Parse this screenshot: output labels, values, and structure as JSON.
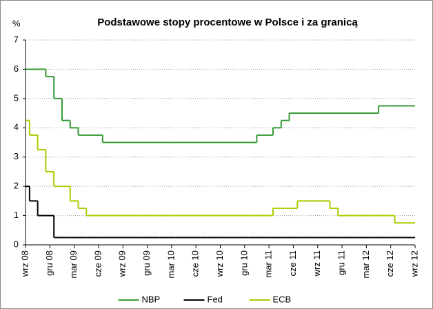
{
  "chart_data": {
    "type": "step",
    "title": "Podstawowe stopy procentowe w Polsce i za granicą",
    "ylabel": "%",
    "categories": [
      "wrz 08",
      null,
      null,
      "gru 08",
      null,
      null,
      "mar 09",
      null,
      null,
      "cze 09",
      null,
      null,
      "wrz 09",
      null,
      null,
      "gru 09",
      null,
      null,
      "mar 10",
      null,
      null,
      "cze 10",
      null,
      null,
      "wrz 10",
      null,
      null,
      "gru 10",
      null,
      null,
      "mar 11",
      null,
      null,
      "cze 11",
      null,
      null,
      "wrz 11",
      null,
      null,
      "gru 11",
      null,
      null,
      "mar 12",
      null,
      null,
      "cze 12",
      null,
      null,
      "wrz 12"
    ],
    "series": [
      {
        "name": "NBP",
        "color": "#339933",
        "values": [
          6,
          6,
          6,
          5.75,
          5,
          4.25,
          4,
          3.75,
          3.75,
          3.75,
          3.5,
          3.5,
          3.5,
          3.5,
          3.5,
          3.5,
          3.5,
          3.5,
          3.5,
          3.5,
          3.5,
          3.5,
          3.5,
          3.5,
          3.5,
          3.5,
          3.5,
          3.5,
          3.5,
          3.75,
          3.75,
          4,
          4.25,
          4.5,
          4.5,
          4.5,
          4.5,
          4.5,
          4.5,
          4.5,
          4.5,
          4.5,
          4.5,
          4.5,
          4.75,
          4.75,
          4.75,
          4.75,
          4.75
        ]
      },
      {
        "name": "Fed",
        "color": "#000000",
        "values": [
          2,
          1.5,
          1,
          1,
          0.25,
          0.25,
          0.25,
          0.25,
          0.25,
          0.25,
          0.25,
          0.25,
          0.25,
          0.25,
          0.25,
          0.25,
          0.25,
          0.25,
          0.25,
          0.25,
          0.25,
          0.25,
          0.25,
          0.25,
          0.25,
          0.25,
          0.25,
          0.25,
          0.25,
          0.25,
          0.25,
          0.25,
          0.25,
          0.25,
          0.25,
          0.25,
          0.25,
          0.25,
          0.25,
          0.25,
          0.25,
          0.25,
          0.25,
          0.25,
          0.25,
          0.25,
          0.25,
          0.25,
          0.25
        ]
      },
      {
        "name": "ECB",
        "color": "#aacc00",
        "values": [
          4.25,
          3.75,
          3.25,
          2.5,
          2,
          2,
          1.5,
          1.25,
          1,
          1,
          1,
          1,
          1,
          1,
          1,
          1,
          1,
          1,
          1,
          1,
          1,
          1,
          1,
          1,
          1,
          1,
          1,
          1,
          1,
          1,
          1,
          1.25,
          1.25,
          1.25,
          1.5,
          1.5,
          1.5,
          1.5,
          1.25,
          1,
          1,
          1,
          1,
          1,
          1,
          1,
          0.75,
          0.75,
          0.75
        ]
      }
    ],
    "ylim": [
      0,
      7
    ],
    "yticks": [
      0,
      1,
      2,
      3,
      4,
      5,
      6,
      7
    ],
    "grid": true,
    "legend": "bottom"
  }
}
